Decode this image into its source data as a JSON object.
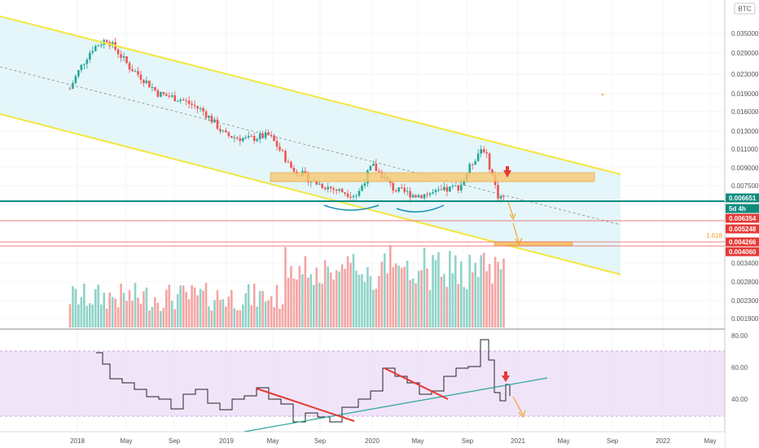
{
  "symbol_button": "BTC",
  "fib_label": "1.618",
  "badges": [
    {
      "text": "0.006651",
      "color": "#0e8c7e",
      "value": 0.006651
    },
    {
      "text": "5d 4h",
      "color": "#0e8c7e",
      "value": 0.00612
    },
    {
      "text": "0.006354",
      "color": "#e53935",
      "value": 0.006354
    },
    {
      "text": "0.005248",
      "color": "#e53935",
      "value": 0.005248
    },
    {
      "text": "0.004266",
      "color": "#e53935",
      "value": 0.004266
    },
    {
      "text": "0.004060",
      "color": "#e53935",
      "value": 0.00406
    }
  ],
  "price_ticks": [
    "0.035000",
    "0.029000",
    "0.023000",
    "0.019000",
    "0.016000",
    "0.013000",
    "0.011000",
    "0.009000",
    "0.007500",
    "0.003400",
    "0.002800",
    "0.002300",
    "0.001900"
  ],
  "rsi_ticks": [
    "80.00",
    "60.00",
    "40.00"
  ],
  "time_labels": [
    "2018",
    "May",
    "Sep",
    "2019",
    "May",
    "Sep",
    "2020",
    "May",
    "Sep",
    "2021",
    "May",
    "Sep",
    "2022",
    "May"
  ],
  "colors": {
    "up": "#26a69a",
    "down": "#ef5350",
    "channel": "#f5e642",
    "rsi_band": "#ead9f7",
    "support": "#0e8c7e",
    "zone": "#f7c871"
  },
  "chart_data": {
    "type": "candlestick",
    "series": "weekly price (BTC) with volume and RSI",
    "close_path_x": [
      2017.95,
      2018.1,
      2018.2,
      2018.35,
      2018.55,
      2018.7,
      2018.85,
      2019.0,
      2019.15,
      2019.3,
      2019.45,
      2019.6,
      2019.75,
      2019.9,
      2020.0,
      2020.15,
      2020.3,
      2020.45,
      2020.6,
      2020.75,
      2020.85,
      2020.92
    ],
    "close_path_y": [
      0.02,
      0.03,
      0.033,
      0.025,
      0.019,
      0.018,
      0.016,
      0.0125,
      0.012,
      0.0125,
      0.009,
      0.0078,
      0.0072,
      0.0068,
      0.0092,
      0.0072,
      0.0068,
      0.007,
      0.0075,
      0.0112,
      0.0068,
      0.0066
    ],
    "rsi_ticks": [
      80,
      60,
      40
    ],
    "rsi_band": [
      70,
      30
    ]
  }
}
